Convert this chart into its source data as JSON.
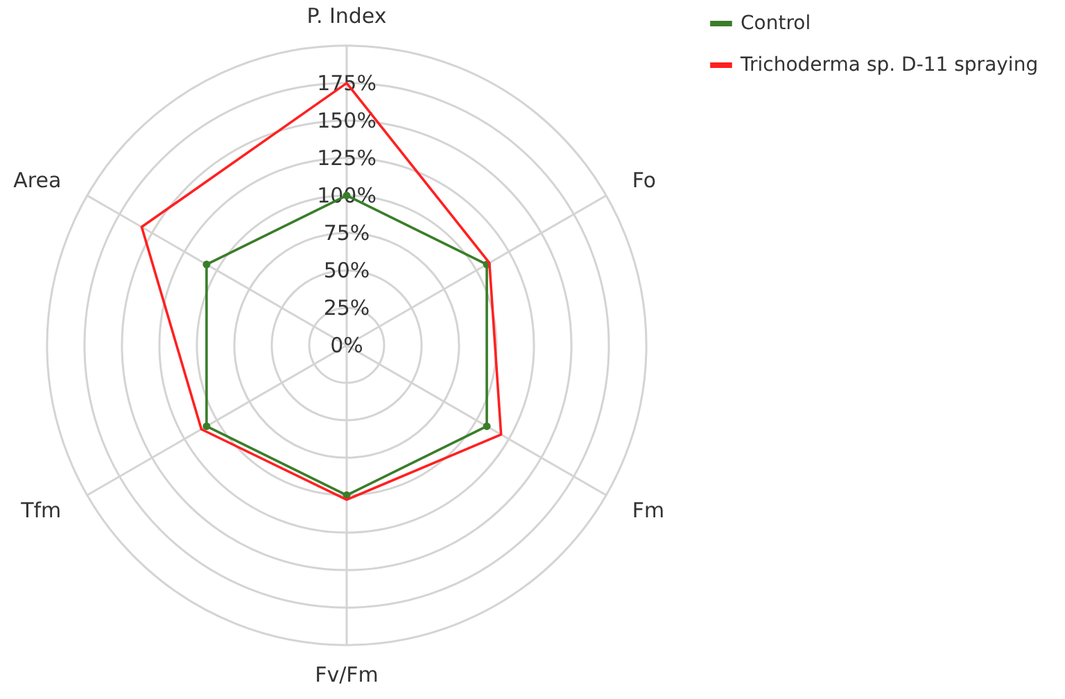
{
  "chart_data": {
    "type": "radar",
    "categories": [
      "P. Index",
      "Fo",
      "Fm",
      "Fv/Fm",
      "Tfm",
      "Area"
    ],
    "series": [
      {
        "name": "Control",
        "color": "#3a7d2a",
        "marker": "circle",
        "values": [
          100,
          108,
          108,
          100,
          108,
          108
        ]
      },
      {
        "name": "Trichoderma sp. D-11 spraying",
        "color": "#ff2020",
        "marker": "none",
        "values": [
          175,
          110,
          119,
          103,
          112,
          158
        ]
      }
    ],
    "ylim": [
      0,
      200
    ],
    "yticks": [
      {
        "value": 0,
        "label": "0%"
      },
      {
        "value": 25,
        "label": "25%"
      },
      {
        "value": 50,
        "label": "50%"
      },
      {
        "value": 75,
        "label": "75%"
      },
      {
        "value": 100,
        "label": "100%"
      },
      {
        "value": 125,
        "label": "125%"
      },
      {
        "value": 150,
        "label": "150%"
      },
      {
        "value": 175,
        "label": "175%"
      }
    ],
    "grid": true,
    "legend": "top right"
  }
}
